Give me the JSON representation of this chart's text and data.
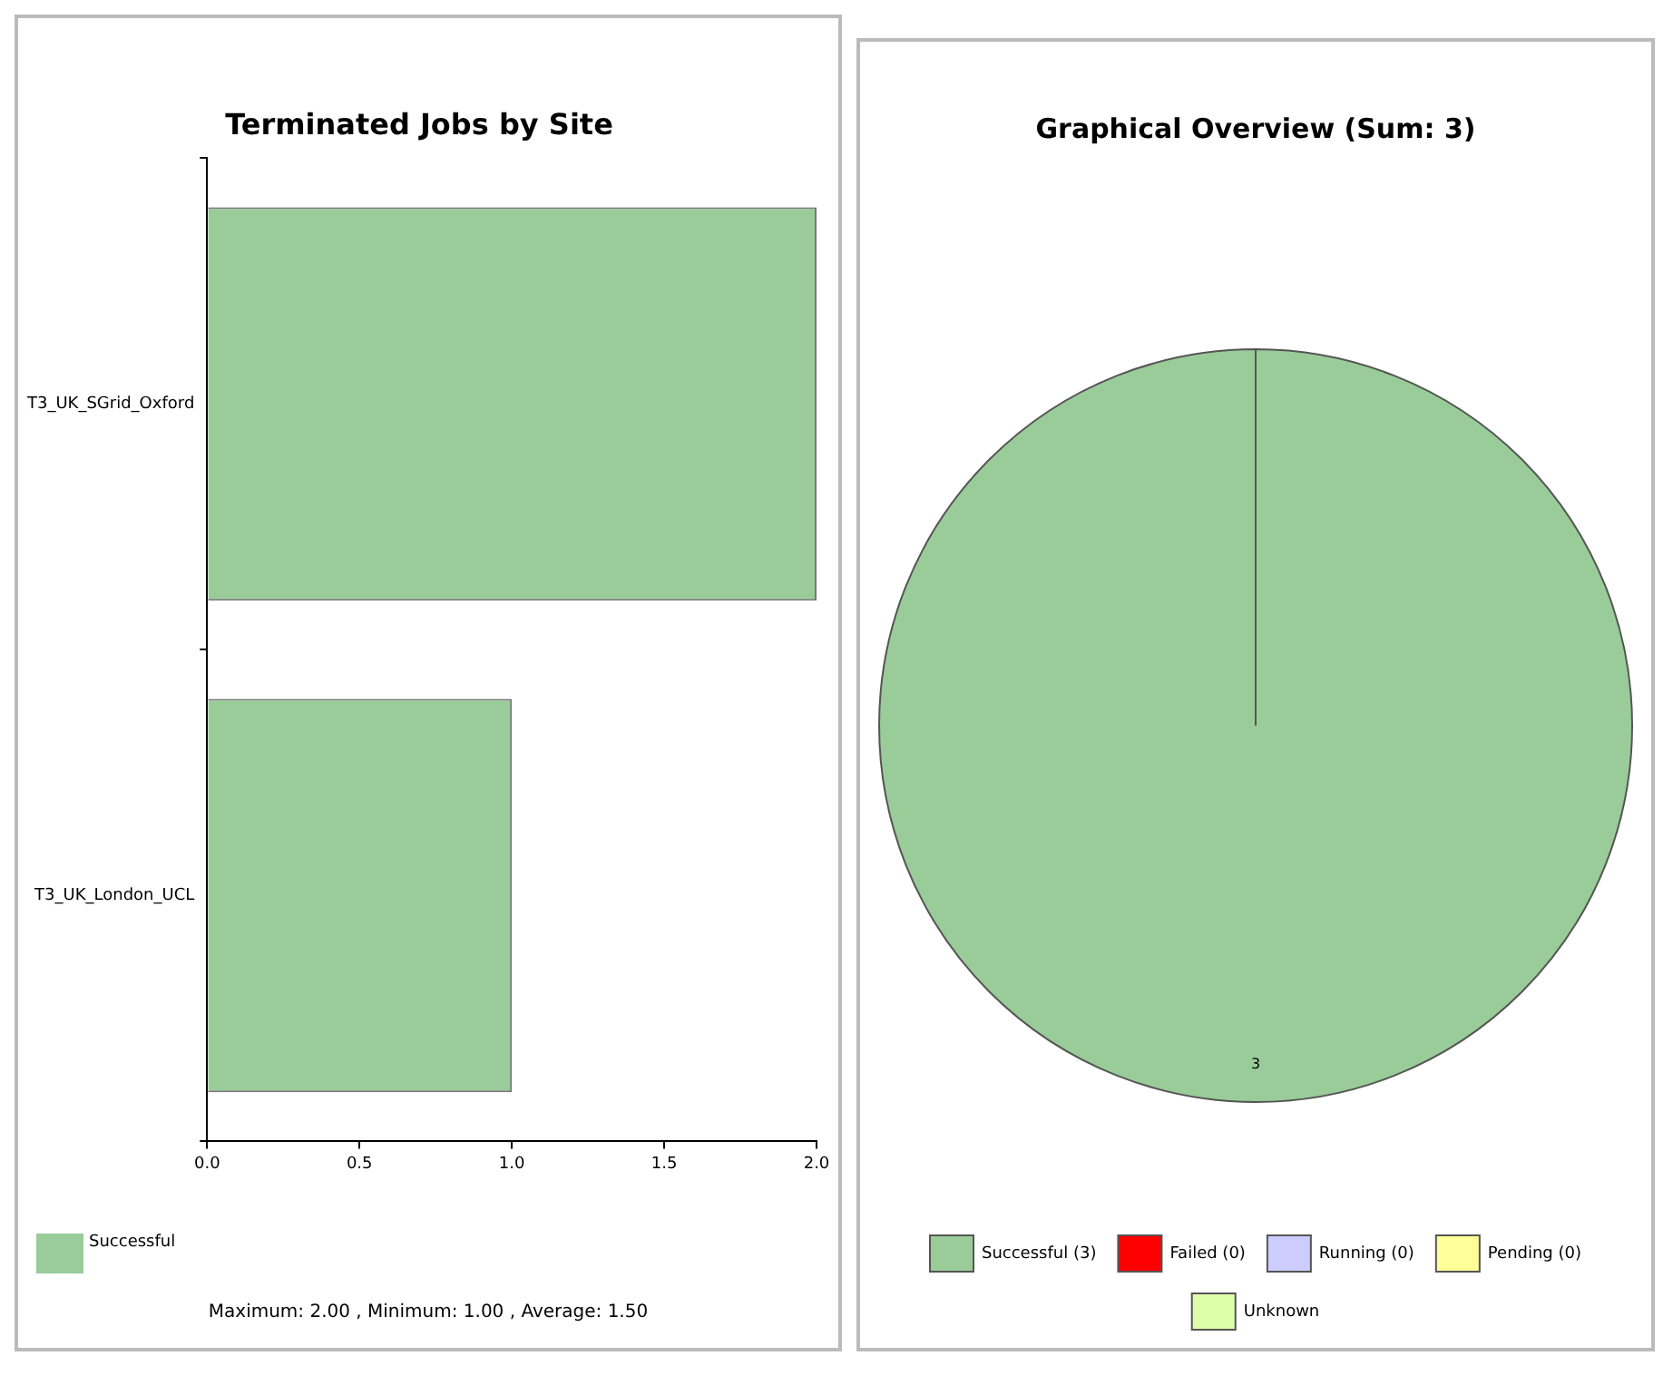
{
  "chart_data": [
    {
      "type": "bar",
      "orientation": "horizontal",
      "title": "Terminated Jobs by Site",
      "categories": [
        "T3_UK_SGrid_Oxford",
        "T3_UK_London_UCL"
      ],
      "series": [
        {
          "name": "Successful",
          "color": "#99cc99",
          "values": [
            2,
            1
          ]
        }
      ],
      "xlim": [
        0,
        2
      ],
      "xticks": [
        {
          "value": 0,
          "label": "0.0"
        },
        {
          "value": 0.5,
          "label": "0.5"
        },
        {
          "value": 1,
          "label": "1.0"
        },
        {
          "value": 1.5,
          "label": "1.5"
        },
        {
          "value": 2,
          "label": "2.0"
        }
      ],
      "grid": false,
      "legend": "bottom left",
      "annotations": [
        "Maximum: 2.00 , Minimum: 1.00 , Average: 1.50"
      ]
    },
    {
      "type": "pie",
      "title": "Graphical Overview (Sum: 3)",
      "categories": [
        "Successful (3)",
        "Failed (0)",
        "Running (0)",
        "Pending (0)",
        "Unknown"
      ],
      "values": [
        3,
        0,
        0,
        0,
        0
      ],
      "colors": [
        "#99cc99",
        "#ff0000",
        "#ccccff",
        "#ffff99",
        "#ddffaa"
      ],
      "value_labels": [
        "3",
        null,
        null,
        null,
        null
      ],
      "legend": "bottom"
    }
  ]
}
